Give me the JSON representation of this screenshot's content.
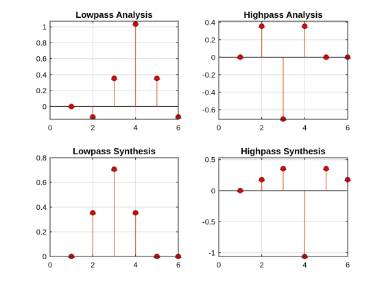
{
  "chart_data": [
    {
      "type": "stem",
      "title": "Lowpass Analysis",
      "x": [
        1,
        2,
        3,
        4,
        5,
        6
      ],
      "values": [
        0,
        -0.1294,
        0.3536,
        1.0353,
        0.3536,
        -0.1294
      ],
      "xlim": [
        0,
        6
      ],
      "ylim": [
        -0.16,
        1.07
      ],
      "xticks": [
        0,
        2,
        4,
        6
      ],
      "yticks": [
        0,
        0.2,
        0.4,
        0.6,
        0.8,
        1
      ],
      "xtick_labels": [
        "0",
        "2",
        "4",
        "6"
      ],
      "ytick_labels": [
        "0",
        "0.2",
        "0.4",
        "0.6",
        "0.8",
        "1"
      ],
      "grid": true,
      "stem_color": "#d95319",
      "marker_color": "#ff0000"
    },
    {
      "type": "stem",
      "title": "Highpass Analysis",
      "x": [
        1,
        2,
        3,
        4,
        5,
        6
      ],
      "values": [
        0,
        0.3536,
        -0.7071,
        0.3536,
        0,
        0
      ],
      "xlim": [
        0,
        6
      ],
      "ylim": [
        -0.71,
        0.41
      ],
      "xticks": [
        0,
        2,
        4,
        6
      ],
      "yticks": [
        -0.6,
        -0.4,
        -0.2,
        0,
        0.2,
        0.4
      ],
      "xtick_labels": [
        "0",
        "2",
        "4",
        "6"
      ],
      "ytick_labels": [
        "-0.6",
        "-0.4",
        "-0.2",
        "0",
        "0.2",
        "0.4"
      ],
      "grid": true,
      "stem_color": "#d95319",
      "marker_color": "#ff0000"
    },
    {
      "type": "stem",
      "title": "Lowpass Synthesis",
      "x": [
        1,
        2,
        3,
        4,
        5,
        6
      ],
      "values": [
        0,
        0.3536,
        0.7071,
        0.3536,
        0,
        0
      ],
      "xlim": [
        0,
        6
      ],
      "ylim": [
        0,
        0.8
      ],
      "xticks": [
        0,
        2,
        4,
        6
      ],
      "yticks": [
        0,
        0.2,
        0.4,
        0.6,
        0.8
      ],
      "xtick_labels": [
        "0",
        "2",
        "4",
        "6"
      ],
      "ytick_labels": [
        "0",
        "0.2",
        "0.4",
        "0.6",
        "0.8"
      ],
      "grid": true,
      "stem_color": "#d95319",
      "marker_color": "#ff0000"
    },
    {
      "type": "stem",
      "title": "Highpass Synthesis",
      "x": [
        1,
        2,
        3,
        4,
        5,
        6
      ],
      "values": [
        0,
        0.1768,
        0.3536,
        -1.0607,
        0.3536,
        0.1768
      ],
      "xlim": [
        0,
        6
      ],
      "ylim": [
        -1.06,
        0.53
      ],
      "xticks": [
        0,
        2,
        4,
        6
      ],
      "yticks": [
        -1,
        -0.5,
        0,
        0.5
      ],
      "xtick_labels": [
        "0",
        "2",
        "4",
        "6"
      ],
      "ytick_labels": [
        "-1",
        "-0.5",
        "0",
        "0.5"
      ],
      "grid": true,
      "stem_color": "#d95319",
      "marker_color": "#ff0000"
    }
  ]
}
